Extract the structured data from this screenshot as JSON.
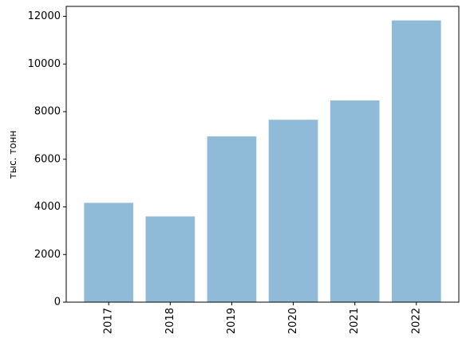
{
  "chart_data": {
    "type": "bar",
    "y_label": "тыс. тонн",
    "categories": [
      "2017",
      "2018",
      "2019",
      "2020",
      "2021",
      "2022"
    ],
    "values": [
      4170,
      3600,
      6960,
      7660,
      8470,
      11830
    ],
    "color": "#8fbbd9",
    "ylim": [
      0,
      12420
    ],
    "yticks": [
      0,
      2000,
      4000,
      6000,
      8000,
      10000,
      12000
    ],
    "grid": false
  }
}
